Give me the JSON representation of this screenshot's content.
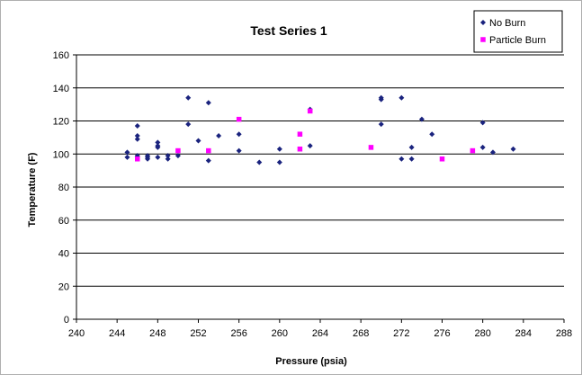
{
  "chart_data": {
    "type": "scatter",
    "title": "Test Series 1",
    "xlabel": "Pressure (psia)",
    "ylabel": "Temperature (F)",
    "xlim": [
      240,
      288
    ],
    "ylim": [
      0,
      160
    ],
    "xticks": [
      240,
      244,
      248,
      252,
      256,
      260,
      264,
      268,
      272,
      276,
      280,
      284,
      288
    ],
    "yticks": [
      0,
      20,
      40,
      60,
      80,
      100,
      120,
      140,
      160
    ],
    "grid": "horizontal",
    "legend_position": "top-right",
    "series": [
      {
        "name": "No Burn",
        "color": "#1a237e",
        "marker": "diamond",
        "points": [
          [
            245,
            101
          ],
          [
            245,
            98
          ],
          [
            246,
            117
          ],
          [
            246,
            111
          ],
          [
            246,
            109
          ],
          [
            246,
            99
          ],
          [
            246,
            98
          ],
          [
            247,
            99
          ],
          [
            247,
            98
          ],
          [
            247,
            97
          ],
          [
            248,
            107
          ],
          [
            248,
            104
          ],
          [
            248,
            105
          ],
          [
            248,
            98
          ],
          [
            249,
            99
          ],
          [
            249,
            97
          ],
          [
            250,
            99
          ],
          [
            251,
            134
          ],
          [
            251,
            118
          ],
          [
            252,
            108
          ],
          [
            253,
            131
          ],
          [
            253,
            96
          ],
          [
            254,
            111
          ],
          [
            256,
            112
          ],
          [
            256,
            102
          ],
          [
            258,
            95
          ],
          [
            260,
            103
          ],
          [
            260,
            95
          ],
          [
            263,
            127
          ],
          [
            263,
            105
          ],
          [
            270,
            134
          ],
          [
            270,
            133
          ],
          [
            270,
            118
          ],
          [
            272,
            134
          ],
          [
            272,
            97
          ],
          [
            273,
            104
          ],
          [
            273,
            97
          ],
          [
            274,
            121
          ],
          [
            275,
            112
          ],
          [
            280,
            119
          ],
          [
            280,
            104
          ],
          [
            281,
            101
          ],
          [
            283,
            103
          ]
        ]
      },
      {
        "name": "Particle Burn",
        "color": "#ff00ff",
        "marker": "square",
        "points": [
          [
            246,
            97
          ],
          [
            250,
            102
          ],
          [
            253,
            102
          ],
          [
            256,
            121
          ],
          [
            262,
            112
          ],
          [
            262,
            103
          ],
          [
            263,
            126
          ],
          [
            269,
            104
          ],
          [
            276,
            97
          ],
          [
            279,
            102
          ]
        ]
      }
    ]
  }
}
